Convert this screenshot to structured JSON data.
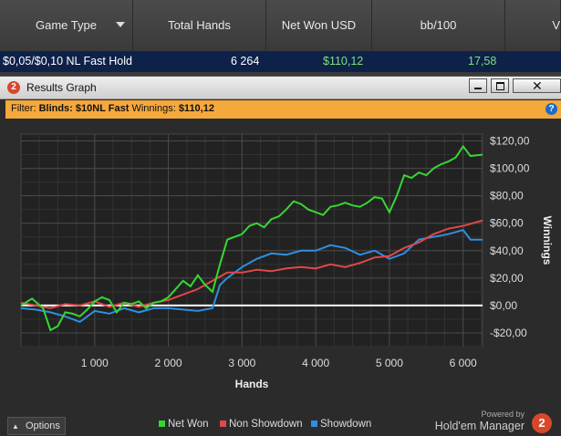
{
  "table": {
    "headers": [
      "Game Type",
      "Total Hands",
      "Net Won USD",
      "bb/100",
      "V"
    ],
    "row": {
      "game_type": "$0,05/$0,10 NL Fast Hold",
      "total_hands": "6 264",
      "net_won": "$110,12",
      "bb100": "17,58"
    }
  },
  "window": {
    "title": "Results Graph",
    "logo_text": "2",
    "filter": {
      "prefix": "Filter:",
      "blinds_label": "Blinds: $10NL Fast",
      "winnings_label": "Winnings:",
      "winnings_value": "$110,12"
    }
  },
  "options_label": "Options",
  "branding": {
    "powered_by": "Powered by",
    "product": "Hold'em Manager",
    "logo_text": "2"
  },
  "colors": {
    "net_won": "#37d633",
    "non_showdown": "#e04848",
    "showdown": "#2f8fe0",
    "zero_line": "#ffffff"
  },
  "chart_data": {
    "type": "line",
    "xlabel": "Hands",
    "ylabel": "Winnings",
    "xlim": [
      0,
      6264
    ],
    "ylim": [
      -30,
      125
    ],
    "x_ticks": [
      1000,
      2000,
      3000,
      4000,
      5000,
      6000
    ],
    "x_tick_labels": [
      "1 000",
      "2 000",
      "3 000",
      "4 000",
      "5 000",
      "6 000"
    ],
    "y_ticks": [
      -20,
      0,
      20,
      40,
      60,
      80,
      100,
      120
    ],
    "y_tick_labels": [
      "-$20,00",
      "$0,00",
      "$20,00",
      "$40,00",
      "$60,00",
      "$80,00",
      "$100,00",
      "$120,00"
    ],
    "grid": true,
    "legend_position": "bottom",
    "series": [
      {
        "name": "Net Won",
        "points": [
          [
            0,
            0
          ],
          [
            150,
            5
          ],
          [
            300,
            -2
          ],
          [
            400,
            -18
          ],
          [
            500,
            -15
          ],
          [
            600,
            -5
          ],
          [
            700,
            -6
          ],
          [
            800,
            -8
          ],
          [
            900,
            -3
          ],
          [
            1000,
            3
          ],
          [
            1100,
            6
          ],
          [
            1200,
            4
          ],
          [
            1300,
            -5
          ],
          [
            1400,
            2
          ],
          [
            1500,
            1
          ],
          [
            1600,
            3
          ],
          [
            1700,
            -2
          ],
          [
            1800,
            2
          ],
          [
            1900,
            3
          ],
          [
            2000,
            6
          ],
          [
            2100,
            12
          ],
          [
            2200,
            18
          ],
          [
            2300,
            14
          ],
          [
            2400,
            22
          ],
          [
            2500,
            15
          ],
          [
            2600,
            10
          ],
          [
            2700,
            30
          ],
          [
            2800,
            48
          ],
          [
            2900,
            50
          ],
          [
            3000,
            52
          ],
          [
            3100,
            58
          ],
          [
            3200,
            60
          ],
          [
            3300,
            57
          ],
          [
            3400,
            63
          ],
          [
            3500,
            65
          ],
          [
            3600,
            70
          ],
          [
            3700,
            76
          ],
          [
            3800,
            74
          ],
          [
            3900,
            70
          ],
          [
            4000,
            68
          ],
          [
            4100,
            66
          ],
          [
            4200,
            72
          ],
          [
            4300,
            73
          ],
          [
            4400,
            75
          ],
          [
            4500,
            73
          ],
          [
            4600,
            72
          ],
          [
            4700,
            75
          ],
          [
            4800,
            79
          ],
          [
            4900,
            78
          ],
          [
            5000,
            68
          ],
          [
            5100,
            80
          ],
          [
            5200,
            95
          ],
          [
            5300,
            93
          ],
          [
            5400,
            97
          ],
          [
            5500,
            95
          ],
          [
            5600,
            100
          ],
          [
            5700,
            103
          ],
          [
            5800,
            105
          ],
          [
            5900,
            108
          ],
          [
            6000,
            116
          ],
          [
            6100,
            109
          ],
          [
            6264,
            110
          ]
        ]
      },
      {
        "name": "Non Showdown",
        "points": [
          [
            0,
            2
          ],
          [
            200,
            0
          ],
          [
            400,
            -2
          ],
          [
            600,
            1
          ],
          [
            800,
            0
          ],
          [
            1000,
            3
          ],
          [
            1200,
            -1
          ],
          [
            1400,
            2
          ],
          [
            1600,
            -1
          ],
          [
            1800,
            2
          ],
          [
            2000,
            4
          ],
          [
            2200,
            8
          ],
          [
            2400,
            12
          ],
          [
            2600,
            18
          ],
          [
            2800,
            24
          ],
          [
            3000,
            24
          ],
          [
            3200,
            26
          ],
          [
            3400,
            25
          ],
          [
            3600,
            27
          ],
          [
            3800,
            28
          ],
          [
            4000,
            27
          ],
          [
            4200,
            30
          ],
          [
            4400,
            28
          ],
          [
            4600,
            31
          ],
          [
            4800,
            35
          ],
          [
            5000,
            36
          ],
          [
            5200,
            42
          ],
          [
            5400,
            46
          ],
          [
            5600,
            52
          ],
          [
            5800,
            56
          ],
          [
            6000,
            58
          ],
          [
            6264,
            62
          ]
        ]
      },
      {
        "name": "Showdown",
        "points": [
          [
            0,
            -2
          ],
          [
            200,
            -3
          ],
          [
            400,
            -5
          ],
          [
            600,
            -8
          ],
          [
            800,
            -12
          ],
          [
            1000,
            -4
          ],
          [
            1200,
            -6
          ],
          [
            1400,
            -2
          ],
          [
            1600,
            -5
          ],
          [
            1800,
            -2
          ],
          [
            2000,
            -2
          ],
          [
            2200,
            -3
          ],
          [
            2400,
            -4
          ],
          [
            2600,
            -2
          ],
          [
            2700,
            15
          ],
          [
            2800,
            20
          ],
          [
            3000,
            28
          ],
          [
            3200,
            34
          ],
          [
            3400,
            38
          ],
          [
            3600,
            37
          ],
          [
            3800,
            40
          ],
          [
            4000,
            40
          ],
          [
            4200,
            44
          ],
          [
            4400,
            42
          ],
          [
            4600,
            37
          ],
          [
            4800,
            40
          ],
          [
            5000,
            34
          ],
          [
            5200,
            38
          ],
          [
            5400,
            48
          ],
          [
            5600,
            50
          ],
          [
            5800,
            52
          ],
          [
            6000,
            55
          ],
          [
            6100,
            48
          ],
          [
            6264,
            48
          ]
        ]
      }
    ]
  }
}
